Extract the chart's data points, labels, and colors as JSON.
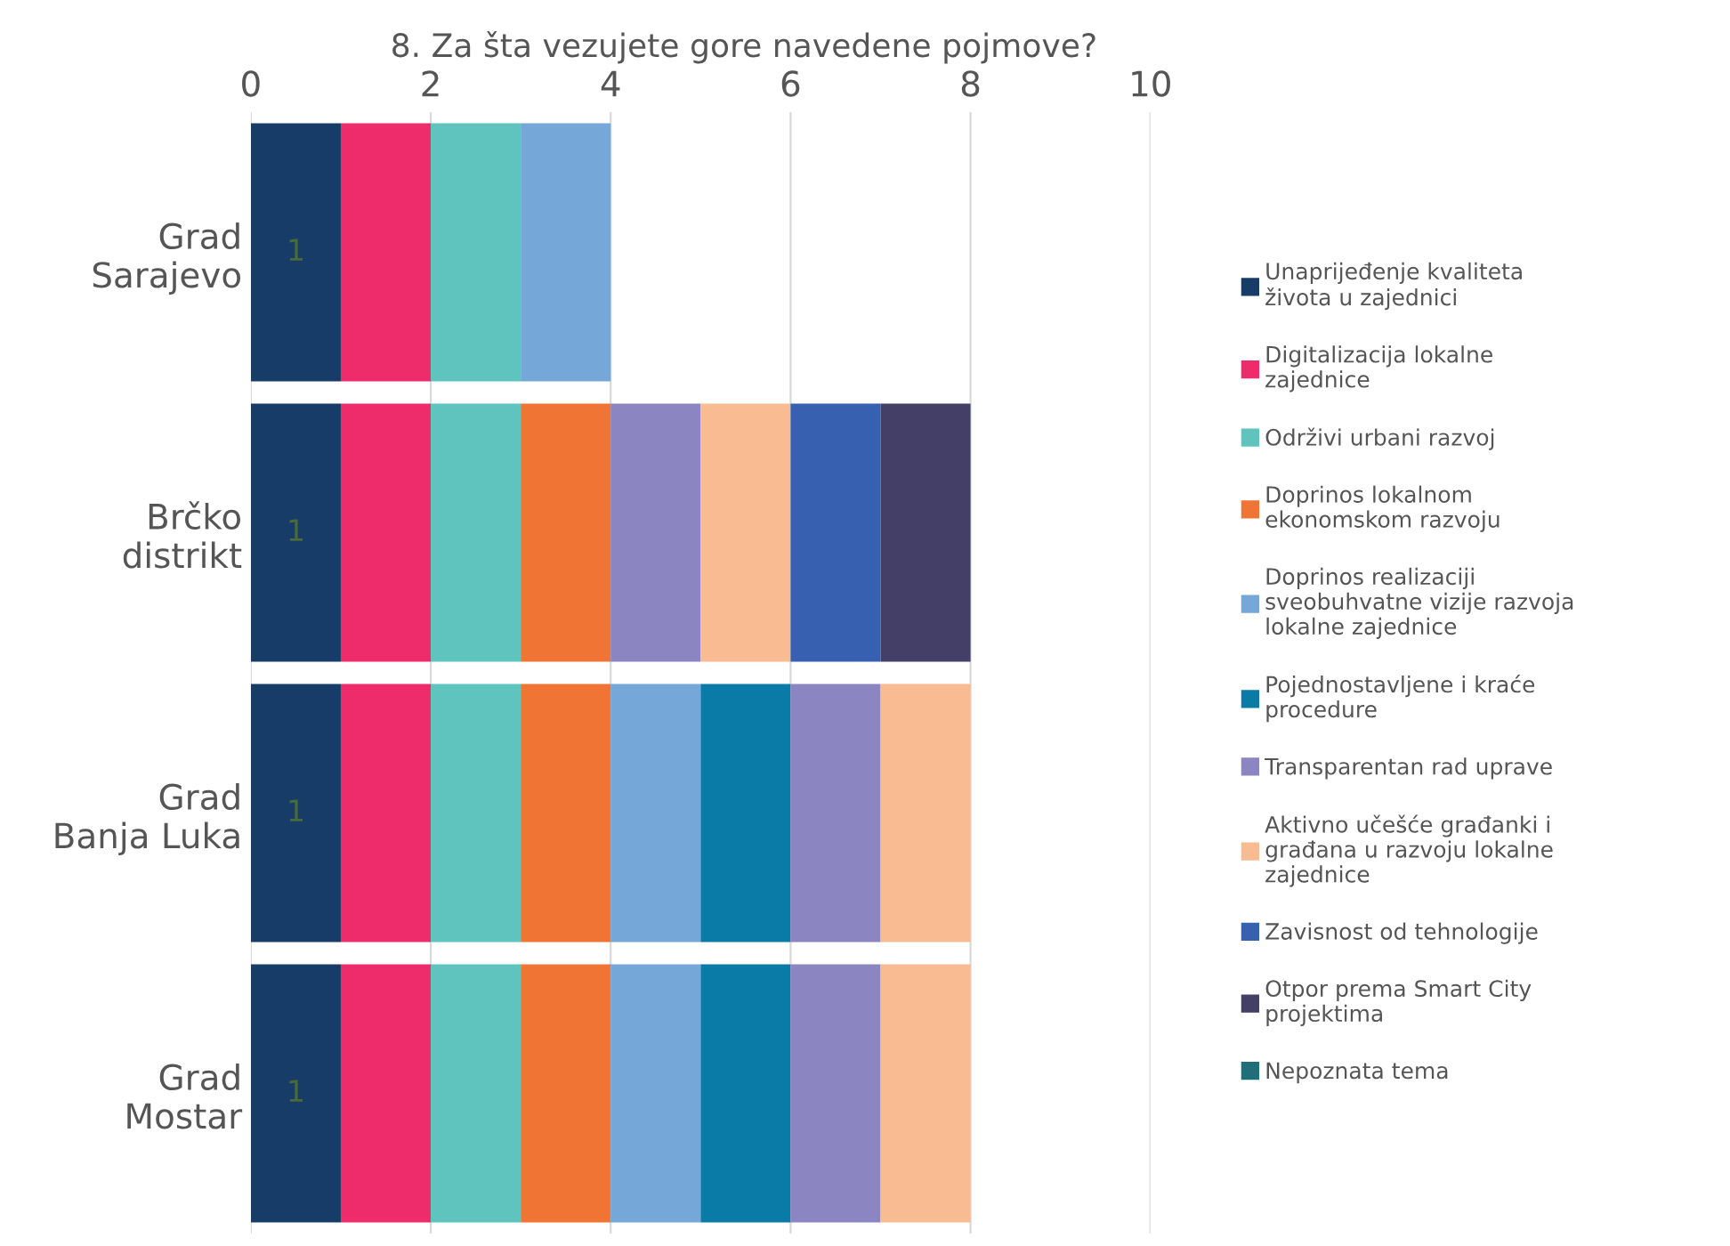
{
  "chart_data": {
    "type": "bar",
    "orientation": "horizontal",
    "stacked": true,
    "title": "8. Za šta vezujete gore navedene pojmove?",
    "categories": [
      "Grad\nSarajevo",
      "Brčko\ndistrikt",
      "Grad\nBanja Luka",
      "Grad\nMostar"
    ],
    "xlim": [
      0,
      10
    ],
    "xticks": [
      0,
      2,
      4,
      6,
      8,
      10
    ],
    "grid": "x",
    "legend": "right",
    "series": [
      {
        "name": "Unaprijeđenje kvaliteta\nživota u zajednici",
        "color": "#173c68",
        "values": [
          1,
          1,
          1,
          1
        ],
        "value_labels": [
          "1",
          "1",
          "1",
          "1"
        ]
      },
      {
        "name": "Digitalizacija lokalne\nzajednice",
        "color": "#ee2c6c",
        "values": [
          1,
          1,
          1,
          1
        ]
      },
      {
        "name": "Održivi urbani razvoj",
        "color": "#5fc4be",
        "values": [
          1,
          1,
          1,
          1
        ]
      },
      {
        "name": "Doprinos lokalnom\nekonomskom razvoju",
        "color": "#f07433",
        "values": [
          null,
          1,
          1,
          1
        ]
      },
      {
        "name": "Doprinos realizaciji\nsveobuhvatne vizije razvoja\nlokalne zajednice",
        "color": "#76a7d9",
        "values": [
          1,
          null,
          1,
          1
        ]
      },
      {
        "name": "Pojednostavljene i kraće\nprocedure",
        "color": "#0a7aa6",
        "values": [
          null,
          null,
          1,
          1
        ]
      },
      {
        "name": "Transparentan rad uprave",
        "color": "#8b85c1",
        "values": [
          null,
          1,
          1,
          1
        ]
      },
      {
        "name": "Aktivno učešće građanki i\ngrađana u razvoju lokalne\nzajednice",
        "color": "#f8bb92",
        "values": [
          null,
          1,
          1,
          1
        ]
      },
      {
        "name": "Zavisnost od tehnologije",
        "color": "#3761b0",
        "values": [
          null,
          1,
          null,
          null
        ]
      },
      {
        "name": "Otpor prema Smart City\nprojektima",
        "color": "#433f66",
        "values": [
          null,
          1,
          null,
          null
        ]
      },
      {
        "name": "Nepoznata tema",
        "color": "#1f6f7a",
        "values": [
          null,
          null,
          null,
          null
        ]
      }
    ]
  }
}
